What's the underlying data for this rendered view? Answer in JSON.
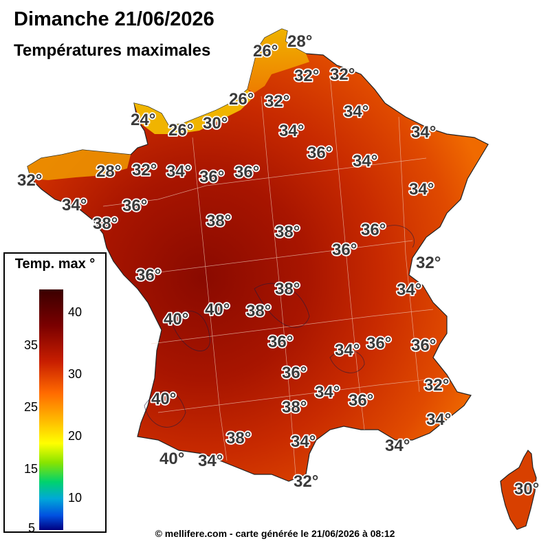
{
  "header": {
    "title": "Dimanche 21/06/2026",
    "subtitle": "Températures maximales"
  },
  "legend": {
    "title": "Temp. max °",
    "ticks_left": [
      "35",
      "25",
      "15",
      "5"
    ],
    "ticks_right": [
      "40",
      "30",
      "20",
      "10"
    ],
    "colors": [
      "#3a0000",
      "#7a0000",
      "#c81e00",
      "#ff6a00",
      "#ffb000",
      "#ffff00",
      "#88e400",
      "#00d26e",
      "#00a8d8",
      "#0050e0",
      "#000080"
    ]
  },
  "footer": "© mellifere.com - carte générée le 21/06/2026 à 08:12",
  "map_labels": [
    "28°",
    "26°",
    "32°",
    "32°",
    "26°",
    "32°",
    "34°",
    "24°",
    "26°",
    "30°",
    "34°",
    "34°",
    "36°",
    "34°",
    "32°",
    "28°",
    "32°",
    "34°",
    "36°",
    "36°",
    "34°",
    "34°",
    "36°",
    "38°",
    "38°",
    "38°",
    "36°",
    "36°",
    "32°",
    "36°",
    "34°",
    "38°",
    "40°",
    "40°",
    "38°",
    "36°",
    "34°",
    "36°",
    "36°",
    "36°",
    "32°",
    "34°",
    "40°",
    "36°",
    "38°",
    "34°",
    "38°",
    "34°",
    "34°",
    "40°",
    "34°",
    "32°",
    "30°"
  ]
}
